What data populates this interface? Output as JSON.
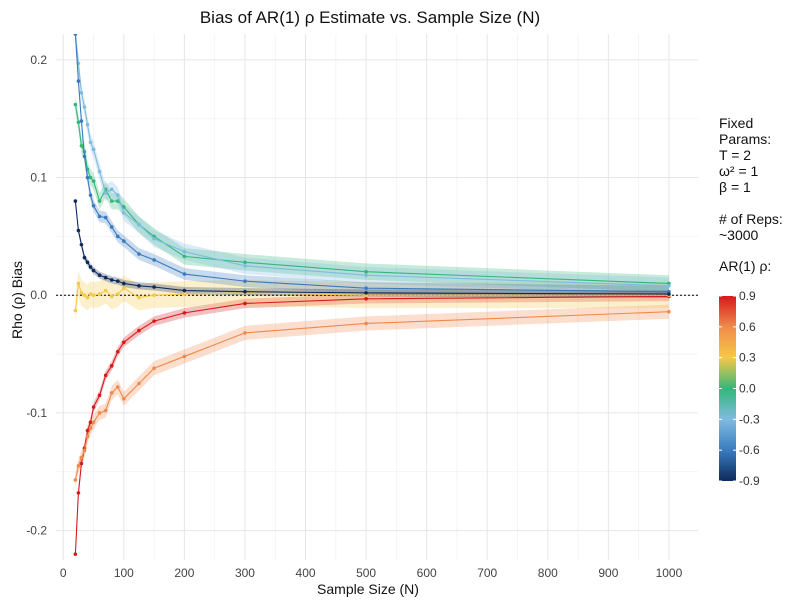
{
  "chart_data": {
    "type": "line",
    "title": "Bias of AR(1) ρ Estimate vs. Sample Size (N)",
    "xlabel": "Sample Size (N)",
    "ylabel": "Rho (ρ) Bias",
    "xlim": [
      -12,
      1048
    ],
    "ylim": [
      -0.225,
      0.222
    ],
    "xticks": [
      0,
      100,
      200,
      300,
      400,
      500,
      600,
      700,
      800,
      900,
      1000
    ],
    "xtick_labels": [
      "0",
      "100",
      "200",
      "300",
      "400",
      "500",
      "600",
      "700",
      "800",
      "900",
      "1000"
    ],
    "yticks": [
      0.2,
      0.1,
      0.0,
      -0.1,
      -0.2
    ],
    "ytick_labels": [
      "0.2",
      "0.1",
      "0.0",
      "-0.1",
      "-0.2"
    ],
    "grid": true,
    "reference_line": 0,
    "x": [
      20,
      25,
      30,
      35,
      40,
      45,
      50,
      60,
      70,
      80,
      90,
      100,
      125,
      150,
      200,
      300,
      500,
      1000
    ],
    "series": [
      {
        "rho": 0.9,
        "color": "#d7191c",
        "ci": 0.004,
        "values": [
          -0.22,
          -0.168,
          -0.143,
          -0.13,
          -0.115,
          -0.108,
          -0.095,
          -0.085,
          -0.068,
          -0.06,
          -0.048,
          -0.04,
          -0.03,
          -0.022,
          -0.015,
          -0.007,
          -0.003,
          -0.001
        ]
      },
      {
        "rho": 0.6,
        "color": "#f08a4b",
        "ci": 0.006,
        "values": [
          -0.157,
          -0.145,
          -0.138,
          -0.132,
          -0.12,
          -0.113,
          -0.108,
          -0.1,
          -0.098,
          -0.083,
          -0.078,
          -0.088,
          -0.075,
          -0.062,
          -0.052,
          -0.032,
          -0.024,
          -0.014
        ]
      },
      {
        "rho": 0.3,
        "color": "#f6c948",
        "ci": 0.011,
        "values": [
          -0.013,
          0.01,
          0.002,
          0.0,
          -0.002,
          0.001,
          0.0,
          0.001,
          0.004,
          -0.001,
          0.001,
          0.006,
          -0.002,
          0.0,
          0.001,
          0.002,
          0.0,
          0.0
        ]
      },
      {
        "rho": 0.0,
        "color": "#35b779",
        "ci": 0.007,
        "values": [
          0.162,
          0.147,
          0.127,
          0.122,
          0.107,
          0.1,
          0.097,
          0.08,
          0.09,
          0.08,
          0.08,
          0.075,
          0.06,
          0.05,
          0.033,
          0.028,
          0.02,
          0.01
        ]
      },
      {
        "rho": -0.3,
        "color": "#7fbbe0",
        "ci": 0.007,
        "values": [
          0.222,
          0.197,
          0.172,
          0.16,
          0.145,
          0.13,
          0.124,
          0.105,
          0.087,
          0.09,
          0.085,
          0.07,
          0.06,
          0.048,
          0.037,
          0.025,
          0.017,
          0.008
        ]
      },
      {
        "rho": -0.6,
        "color": "#3a7bbf",
        "ci": 0.005,
        "values": [
          0.222,
          0.182,
          0.148,
          0.118,
          0.1,
          0.085,
          0.076,
          0.067,
          0.066,
          0.058,
          0.05,
          0.046,
          0.035,
          0.03,
          0.018,
          0.012,
          0.006,
          0.003
        ]
      },
      {
        "rho": -0.9,
        "color": "#0e2a5a",
        "ci": 0.003,
        "values": [
          0.08,
          0.055,
          0.043,
          0.032,
          0.028,
          0.024,
          0.021,
          0.017,
          0.015,
          0.013,
          0.012,
          0.01,
          0.008,
          0.007,
          0.004,
          0.003,
          0.002,
          0.001
        ]
      }
    ],
    "legend": {
      "title": "AR(1) ρ:",
      "position": "right",
      "colorbar_ticks": [
        "0.9",
        "0.6",
        "0.3",
        "0.0",
        "-0.3",
        "-0.6",
        "-0.9"
      ],
      "colorbar_stops": [
        "#d7191c",
        "#f08a4b",
        "#f6c948",
        "#35b779",
        "#7fbbe0",
        "#3a7bbf",
        "#0e2a5a"
      ]
    },
    "annotations": {
      "fixed_params": "Fixed\nParams:\nT = 2\nω² = 1\nβ = 1",
      "reps": "# of Reps:\n~3000"
    }
  }
}
